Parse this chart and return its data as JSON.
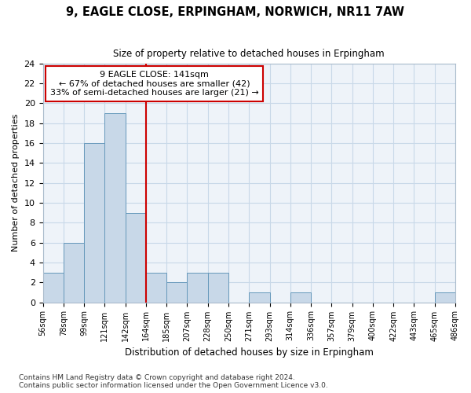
{
  "title1": "9, EAGLE CLOSE, ERPINGHAM, NORWICH, NR11 7AW",
  "title2": "Size of property relative to detached houses in Erpingham",
  "xlabel": "Distribution of detached houses by size in Erpingham",
  "ylabel": "Number of detached properties",
  "bar_values": [
    3,
    6,
    16,
    19,
    9,
    3,
    2,
    3,
    3,
    0,
    1,
    0,
    1,
    0,
    0,
    0,
    0,
    0,
    0,
    1
  ],
  "bin_labels": [
    "56sqm",
    "78sqm",
    "99sqm",
    "121sqm",
    "142sqm",
    "164sqm",
    "185sqm",
    "207sqm",
    "228sqm",
    "250sqm",
    "271sqm",
    "293sqm",
    "314sqm",
    "336sqm",
    "357sqm",
    "379sqm",
    "400sqm",
    "422sqm",
    "443sqm",
    "465sqm",
    "486sqm"
  ],
  "bar_color": "#c8d8e8",
  "bar_edge_color": "#6699bb",
  "vline_color": "#cc0000",
  "vline_x": 4.5,
  "annotation_box_text": "9 EAGLE CLOSE: 141sqm\n← 67% of detached houses are smaller (42)\n33% of semi-detached houses are larger (21) →",
  "annotation_box_color": "#cc0000",
  "ylim": [
    0,
    24
  ],
  "yticks": [
    0,
    2,
    4,
    6,
    8,
    10,
    12,
    14,
    16,
    18,
    20,
    22,
    24
  ],
  "footer": "Contains HM Land Registry data © Crown copyright and database right 2024.\nContains public sector information licensed under the Open Government Licence v3.0.",
  "bg_color": "#eef3f9",
  "grid_color": "#c8d8e8"
}
